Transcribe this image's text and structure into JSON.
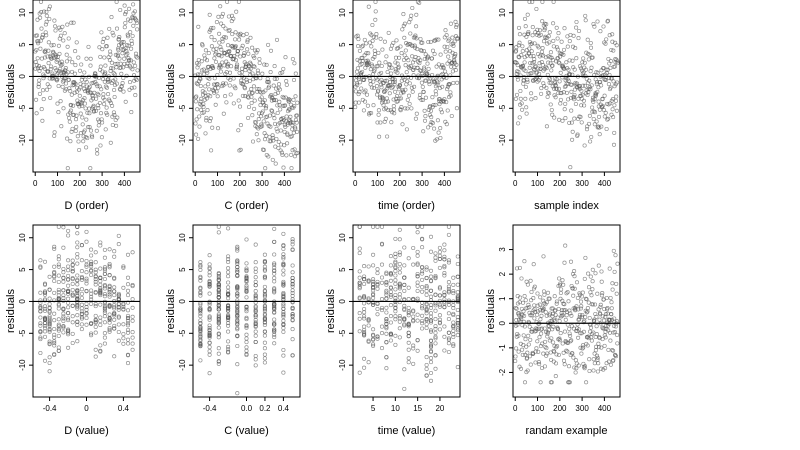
{
  "chart_data": [
    {
      "type": "scatter",
      "xlabel": "D (order)",
      "ylabel": "residuals",
      "xlim": [
        -10,
        470
      ],
      "ylim": [
        -15,
        12
      ],
      "xticks": [
        0,
        100,
        200,
        300,
        400
      ],
      "yticks": [
        -10,
        -5,
        0,
        5,
        10
      ],
      "xgen": "order",
      "n": 460,
      "pattern": "bumpy"
    },
    {
      "type": "scatter",
      "xlabel": "C (order)",
      "ylabel": "residuals",
      "xlim": [
        -10,
        470
      ],
      "ylim": [
        -15,
        12
      ],
      "xticks": [
        0,
        100,
        200,
        300,
        400
      ],
      "yticks": [
        -10,
        -5,
        0,
        5,
        10
      ],
      "xgen": "order",
      "n": 460,
      "pattern": "hump"
    },
    {
      "type": "scatter",
      "xlabel": "time (order)",
      "ylabel": "residuals",
      "xlim": [
        -10,
        470
      ],
      "ylim": [
        -15,
        12
      ],
      "xticks": [
        0,
        100,
        200,
        300,
        400
      ],
      "yticks": [
        -10,
        -5,
        0,
        5,
        10
      ],
      "xgen": "order",
      "n": 460,
      "pattern": "wave"
    },
    {
      "type": "scatter",
      "xlabel": "sample index",
      "ylabel": "residuals",
      "xlim": [
        -10,
        470
      ],
      "ylim": [
        -15,
        12
      ],
      "xticks": [
        0,
        100,
        200,
        300,
        400
      ],
      "yticks": [
        -10,
        -5,
        0,
        5,
        10
      ],
      "xgen": "order",
      "n": 460,
      "pattern": "scatter"
    },
    {
      "type": "scatter",
      "xlabel": "D (value)",
      "ylabel": "residuals",
      "xlim": [
        -0.58,
        0.58
      ],
      "ylim": [
        -15,
        12
      ],
      "xticks": [
        -0.4,
        0,
        0.4
      ],
      "yticks": [
        -10,
        -5,
        0,
        5,
        10
      ],
      "xgen": "continuous",
      "n": 460,
      "pattern": "columns"
    },
    {
      "type": "scatter",
      "xlabel": "C (value)",
      "ylabel": "residuals",
      "xlim": [
        -0.58,
        0.58
      ],
      "ylim": [
        -15,
        12
      ],
      "xticks": [
        -0.4,
        0,
        0.2,
        0.4
      ],
      "tick_labels": [
        "-0.4",
        "0.0",
        "0.2",
        "0.4"
      ],
      "yticks": [
        -10,
        -5,
        0,
        5,
        10
      ],
      "xgen": "discrete",
      "levels": [
        -0.5,
        -0.4,
        -0.3,
        -0.2,
        -0.1,
        0.0,
        0.1,
        0.2,
        0.3,
        0.4,
        0.5
      ],
      "n": 460,
      "pattern": "columns"
    },
    {
      "type": "scatter",
      "xlabel": "time (value)",
      "ylabel": "residuals",
      "xlim": [
        0.5,
        24.5
      ],
      "ylim": [
        -15,
        12
      ],
      "xticks": [
        5,
        10,
        15,
        20
      ],
      "yticks": [
        -10,
        -5,
        0,
        5,
        10
      ],
      "xgen": "discrete",
      "levels": [
        2,
        3,
        4,
        5,
        6,
        7,
        8,
        9,
        10,
        11,
        12,
        13,
        14,
        15,
        16,
        17,
        18,
        19,
        20,
        21,
        22,
        23,
        24
      ],
      "n": 460,
      "pattern": "columns"
    },
    {
      "type": "scatter",
      "xlabel": "randam example",
      "ylabel": "residuals",
      "xlim": [
        -10,
        470
      ],
      "ylim": [
        -3,
        4
      ],
      "xticks": [
        0,
        100,
        200,
        300,
        400
      ],
      "yticks": [
        -2,
        -1,
        0,
        1,
        2,
        3
      ],
      "xgen": "order",
      "n": 460,
      "pattern": "noise"
    }
  ]
}
